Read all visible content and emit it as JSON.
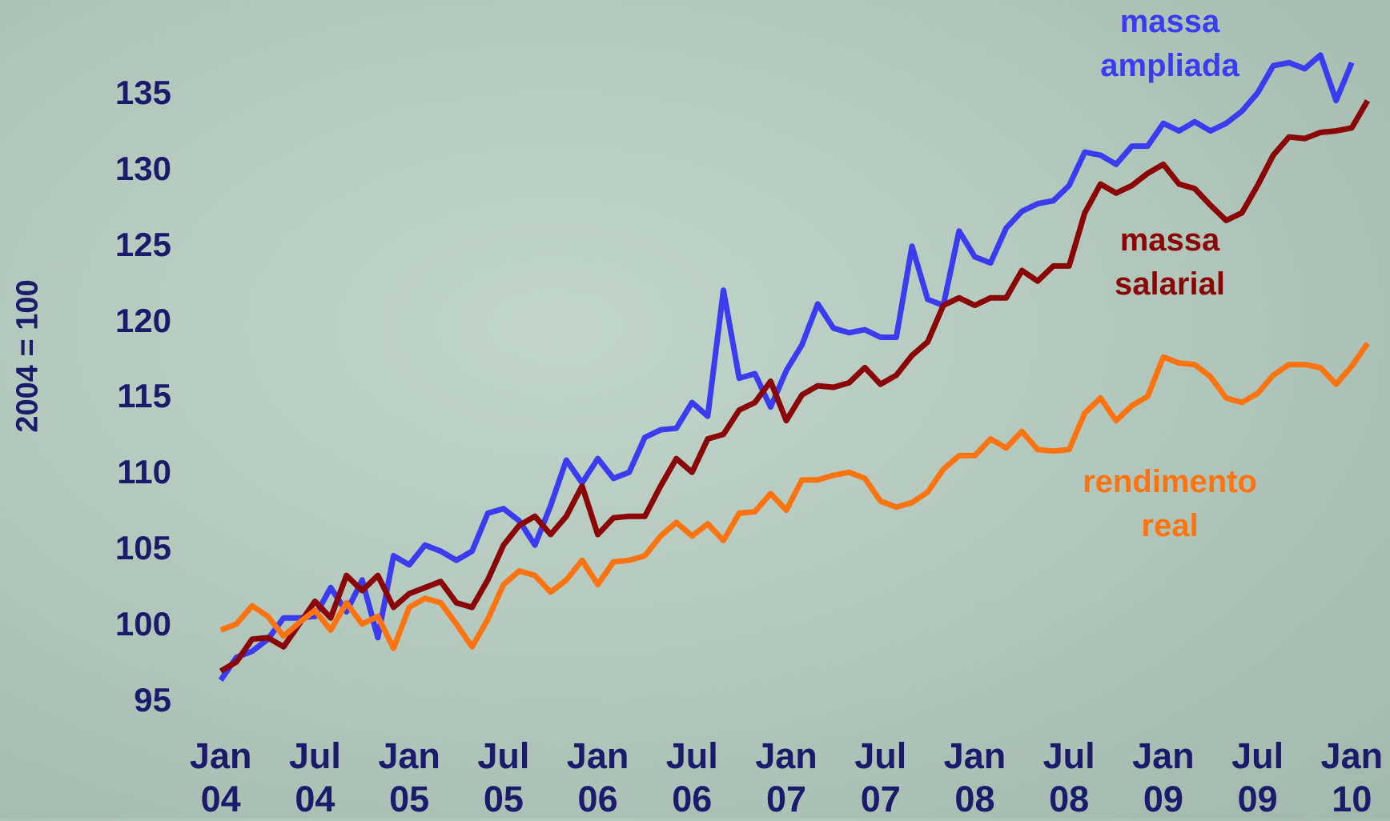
{
  "chart_data": {
    "type": "line",
    "y_label": "2004 = 100",
    "categories": [
      "Jan 04",
      null,
      null,
      null,
      null,
      null,
      "Jul 04",
      null,
      null,
      null,
      null,
      null,
      "Jan 05",
      null,
      null,
      null,
      null,
      null,
      "Jul 05",
      null,
      null,
      null,
      null,
      null,
      "Jan 06",
      null,
      null,
      null,
      null,
      null,
      "Jul 06",
      null,
      null,
      null,
      null,
      null,
      "Jan 07",
      null,
      null,
      null,
      null,
      null,
      "Jul 07",
      null,
      null,
      null,
      null,
      null,
      "Jan 08",
      null,
      null,
      null,
      null,
      null,
      "Jul 08",
      null,
      null,
      null,
      null,
      null,
      "Jan 09",
      null,
      null,
      null,
      null,
      null,
      "Jul 09",
      null,
      null,
      null,
      null,
      null,
      "Jan 10",
      null
    ],
    "ylim": [
      92,
      140
    ],
    "yticks": [
      95,
      100,
      105,
      110,
      115,
      120,
      125,
      130,
      135
    ],
    "grid": false,
    "series": [
      {
        "name": "massa ampliada",
        "color": "#3b3bf2",
        "values": [
          96.3,
          97.8,
          98.2,
          99.0,
          100.4,
          100.4,
          100.5,
          102.4,
          100.8,
          102.9,
          99.1,
          104.5,
          103.9,
          105.2,
          104.8,
          104.2,
          104.8,
          107.3,
          107.6,
          106.8,
          105.2,
          107.8,
          110.8,
          109.3,
          110.9,
          109.6,
          110.0,
          112.3,
          112.8,
          112.9,
          114.6,
          113.7,
          122.0,
          116.2,
          116.5,
          114.3,
          116.7,
          118.4,
          121.1,
          119.5,
          119.2,
          119.4,
          118.9,
          118.9,
          124.9,
          121.4,
          121.0,
          125.9,
          124.2,
          123.8,
          126.1,
          127.2,
          127.7,
          127.9,
          128.9,
          131.1,
          130.9,
          130.3,
          131.5,
          131.5,
          133.0,
          132.5,
          133.1,
          132.5,
          133.0,
          133.8,
          135.0,
          136.8,
          137.0,
          136.6,
          137.5,
          134.5,
          137.0,
          null
        ]
      },
      {
        "name": "massa salarial",
        "color": "#8a0505",
        "values": [
          96.9,
          97.5,
          99.0,
          99.1,
          98.5,
          100.0,
          101.5,
          100.4,
          103.2,
          102.2,
          103.2,
          101.1,
          102.0,
          102.4,
          102.8,
          101.4,
          101.1,
          102.9,
          105.2,
          106.5,
          107.1,
          105.9,
          107.1,
          109.1,
          105.9,
          107.0,
          107.1,
          107.1,
          109.1,
          110.9,
          110.0,
          112.2,
          112.5,
          114.1,
          114.6,
          116.0,
          113.4,
          115.1,
          115.7,
          115.6,
          115.9,
          116.9,
          115.8,
          116.4,
          117.7,
          118.6,
          121.0,
          121.5,
          121.0,
          121.5,
          121.5,
          123.3,
          122.6,
          123.6,
          123.6,
          127.1,
          129.0,
          128.4,
          128.9,
          129.7,
          130.3,
          129.0,
          128.7,
          127.6,
          126.6,
          127.1,
          128.9,
          130.9,
          132.1,
          132.0,
          132.4,
          132.5,
          132.7,
          134.5
        ]
      },
      {
        "name": "rendimento real",
        "color": "#ff7410",
        "values": [
          99.6,
          100.0,
          101.2,
          100.5,
          99.2,
          100.1,
          100.9,
          99.6,
          101.4,
          100.0,
          100.5,
          98.4,
          101.1,
          101.7,
          101.4,
          100.0,
          98.5,
          100.3,
          102.6,
          103.5,
          103.2,
          102.1,
          102.9,
          104.2,
          102.6,
          104.1,
          104.2,
          104.5,
          105.8,
          106.7,
          105.8,
          106.6,
          105.5,
          107.3,
          107.4,
          108.6,
          107.5,
          109.5,
          109.5,
          109.8,
          110.0,
          109.6,
          108.1,
          107.7,
          108.0,
          108.7,
          110.2,
          111.1,
          111.1,
          112.2,
          111.6,
          112.7,
          111.5,
          111.4,
          111.5,
          113.9,
          114.9,
          113.4,
          114.4,
          115.0,
          117.6,
          117.2,
          117.1,
          116.3,
          114.9,
          114.6,
          115.2,
          116.4,
          117.1,
          117.1,
          116.9,
          115.8,
          117.0,
          118.5
        ]
      }
    ]
  }
}
